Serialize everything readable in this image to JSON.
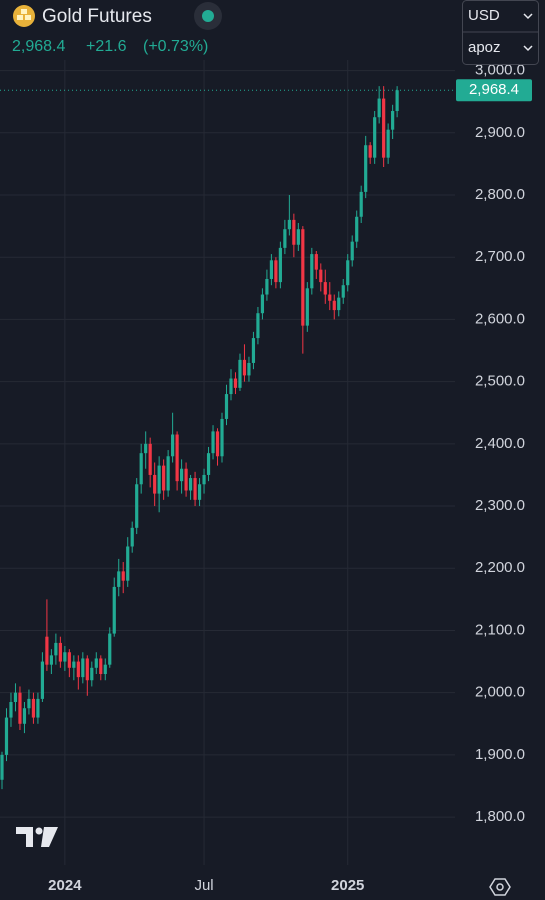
{
  "header": {
    "title": "Gold Futures",
    "price": "2,968.4",
    "change": "+21.6",
    "change_pct": "(+0.73%)",
    "currency": "USD",
    "account": "apoz"
  },
  "chart_data": {
    "type": "candlestick",
    "up_color": "#22ab94",
    "down_color": "#f23645",
    "grid": true,
    "last_label": "2,968.4",
    "categories": [
      null,
      null,
      null,
      null,
      null,
      null,
      null,
      null,
      null,
      null,
      null,
      null,
      null,
      null,
      "2024",
      null,
      null,
      null,
      null,
      null,
      null,
      null,
      null,
      null,
      null,
      null,
      null,
      null,
      null,
      null,
      null,
      null,
      null,
      null,
      null,
      null,
      null,
      null,
      null,
      null,
      null,
      null,
      null,
      null,
      null,
      "Jul",
      null,
      null,
      null,
      null,
      null,
      null,
      null,
      null,
      null,
      null,
      null,
      null,
      null,
      null,
      null,
      null,
      null,
      null,
      null,
      null,
      null,
      null,
      null,
      null,
      null,
      null,
      null,
      null,
      null,
      null,
      null,
      "2025",
      null,
      null,
      null,
      null,
      null,
      null,
      null,
      null,
      null,
      null,
      null
    ],
    "open": [
      1860,
      1900,
      1960,
      1985,
      2000,
      1950,
      1975,
      1990,
      1960,
      1990,
      2090,
      2045,
      2060,
      2080,
      2050,
      2065,
      2040,
      2050,
      2025,
      2055,
      2020,
      2040,
      2055,
      2030,
      2045,
      2095,
      2170,
      2195,
      2180,
      2235,
      2265,
      2335,
      2385,
      2400,
      2350,
      2320,
      2365,
      2325,
      2380,
      2415,
      2340,
      2360,
      2325,
      2345,
      2310,
      2335,
      2350,
      2385,
      2420,
      2380,
      2440,
      2480,
      2505,
      2490,
      2535,
      2510,
      2530,
      2570,
      2610,
      2640,
      2665,
      2695,
      2660,
      2715,
      2745,
      2760,
      2720,
      2745,
      2590,
      2650,
      2705,
      2680,
      2660,
      2640,
      2630,
      2615,
      2635,
      2655,
      2695,
      2725,
      2765,
      2805,
      2880,
      2860,
      2925,
      2955,
      2860,
      2905,
      2935
    ],
    "high": [
      1905,
      1975,
      2000,
      2015,
      2010,
      1985,
      2005,
      2000,
      2000,
      2065,
      2150,
      2070,
      2095,
      2090,
      2075,
      2070,
      2060,
      2060,
      2065,
      2060,
      2050,
      2065,
      2060,
      2055,
      2105,
      2185,
      2215,
      2210,
      2250,
      2275,
      2345,
      2400,
      2420,
      2410,
      2370,
      2380,
      2375,
      2390,
      2450,
      2420,
      2375,
      2370,
      2350,
      2355,
      2345,
      2360,
      2395,
      2430,
      2425,
      2450,
      2495,
      2520,
      2515,
      2545,
      2560,
      2540,
      2580,
      2620,
      2650,
      2680,
      2705,
      2700,
      2725,
      2760,
      2800,
      2770,
      2755,
      2750,
      2660,
      2715,
      2710,
      2690,
      2680,
      2660,
      2640,
      2645,
      2665,
      2705,
      2735,
      2775,
      2815,
      2895,
      2885,
      2935,
      2975,
      2975,
      2915,
      2945,
      2975
    ],
    "low": [
      1845,
      1890,
      1945,
      1970,
      1940,
      1935,
      1965,
      1950,
      1950,
      1985,
      2035,
      2030,
      2045,
      2040,
      2035,
      2025,
      2020,
      2005,
      2015,
      1995,
      2010,
      2030,
      2020,
      2020,
      2040,
      2090,
      2155,
      2160,
      2170,
      2225,
      2255,
      2320,
      2360,
      2330,
      2300,
      2290,
      2310,
      2315,
      2370,
      2325,
      2320,
      2315,
      2310,
      2300,
      2300,
      2320,
      2340,
      2375,
      2365,
      2370,
      2430,
      2470,
      2480,
      2485,
      2500,
      2500,
      2520,
      2560,
      2600,
      2630,
      2655,
      2650,
      2650,
      2705,
      2735,
      2700,
      2710,
      2545,
      2580,
      2640,
      2665,
      2645,
      2625,
      2615,
      2600,
      2605,
      2625,
      2645,
      2685,
      2715,
      2755,
      2795,
      2850,
      2850,
      2915,
      2845,
      2850,
      2890,
      2925
    ],
    "close": [
      1900,
      1960,
      1985,
      2000,
      1950,
      1975,
      1990,
      1960,
      1990,
      2050,
      2045,
      2060,
      2080,
      2050,
      2065,
      2040,
      2050,
      2025,
      2055,
      2020,
      2040,
      2055,
      2030,
      2045,
      2095,
      2170,
      2195,
      2180,
      2235,
      2265,
      2335,
      2385,
      2400,
      2350,
      2320,
      2365,
      2325,
      2380,
      2415,
      2340,
      2360,
      2325,
      2345,
      2310,
      2335,
      2350,
      2385,
      2420,
      2380,
      2440,
      2480,
      2505,
      2490,
      2535,
      2510,
      2530,
      2570,
      2610,
      2640,
      2665,
      2695,
      2660,
      2715,
      2745,
      2760,
      2720,
      2745,
      2590,
      2650,
      2705,
      2680,
      2660,
      2640,
      2630,
      2615,
      2635,
      2655,
      2695,
      2725,
      2765,
      2805,
      2880,
      2860,
      2925,
      2955,
      2860,
      2905,
      2935,
      2968.4
    ],
    "ylim": [
      1723,
      3017
    ],
    "yticks": [
      {
        "value": 1800,
        "label": "1,800.0"
      },
      {
        "value": 1900,
        "label": "1,900.0"
      },
      {
        "value": 2000,
        "label": "2,000.0"
      },
      {
        "value": 2100,
        "label": "2,100.0"
      },
      {
        "value": 2200,
        "label": "2,200.0"
      },
      {
        "value": 2300,
        "label": "2,300.0"
      },
      {
        "value": 2400,
        "label": "2,400.0"
      },
      {
        "value": 2500,
        "label": "2,500.0"
      },
      {
        "value": 2600,
        "label": "2,600.0"
      },
      {
        "value": 2700,
        "label": "2,700.0"
      },
      {
        "value": 2800,
        "label": "2,800.0"
      },
      {
        "value": 2900,
        "label": "2,900.0"
      },
      {
        "value": 3000,
        "label": "3,000.0"
      }
    ]
  }
}
